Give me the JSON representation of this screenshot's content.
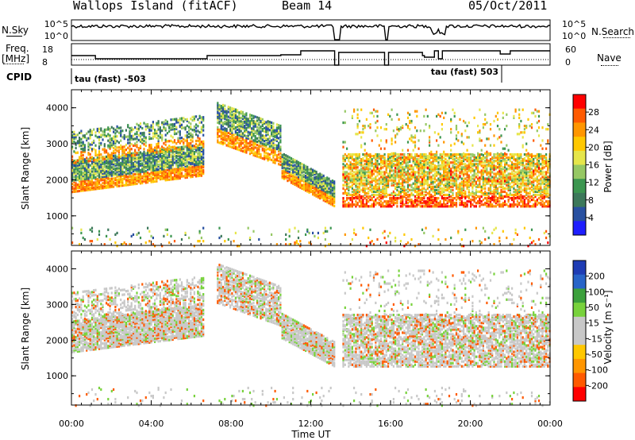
{
  "header": {
    "station": "Wallops Island (fitACF)",
    "beam": "Beam 14",
    "date": "05/Oct/2011"
  },
  "top_panels": {
    "nsky_label": "N.Sky",
    "nsky_ticks": [
      "10^5",
      "10^0"
    ],
    "nsearch_label": "N.Search",
    "nsearch_ticks": [
      "10^5",
      "10^0"
    ],
    "freq_label": "Freq.",
    "freq_unit": "[MHz]",
    "freq_ticks": [
      "18",
      "8"
    ],
    "nave_label": "Nave",
    "nave_ticks": [
      "60",
      "0"
    ],
    "cpid_label": "CPID",
    "cpid_left": "tau (fast) -503",
    "cpid_right": "tau (fast) 503"
  },
  "chart_data": [
    {
      "type": "heatmap",
      "name": "power",
      "ylabel": "Slant Range [km]",
      "y_ticks": [
        "1000",
        "2000",
        "3000",
        "4000"
      ],
      "ylim": [
        180,
        4500
      ],
      "xlim": [
        0,
        24
      ],
      "colorbar_label": "Power [dB]",
      "colorbar_ticks": [
        "28",
        "24",
        "20",
        "16",
        "12",
        "8",
        "4"
      ],
      "colorbar_colors": [
        "#ff0000",
        "#ff5a00",
        "#ff9600",
        "#ffc800",
        "#e6e64b",
        "#96c864",
        "#3c9650",
        "#3c785a",
        "#2850a0",
        "#1e1eff"
      ],
      "bands": [
        {
          "t0": 0.0,
          "t1": 6.6,
          "lo": 1600,
          "hi": 2800,
          "level": 0.55
        },
        {
          "t0": 0.3,
          "t1": 6.4,
          "lo": 2600,
          "hi": 3700,
          "level": 0.2
        },
        {
          "t0": 7.3,
          "t1": 13.2,
          "lo": 1400,
          "hi": 4200,
          "level": 0.5
        },
        {
          "t0": 13.5,
          "t1": 24.0,
          "lo": 1300,
          "hi": 2800,
          "level": 0.8
        },
        {
          "t0": 14.0,
          "t1": 24.0,
          "lo": 200,
          "hi": 4000,
          "level": 0.35
        }
      ]
    },
    {
      "type": "heatmap",
      "name": "velocity",
      "ylabel": "Slant Range [km]",
      "y_ticks": [
        "1000",
        "2000",
        "3000",
        "4000"
      ],
      "ylim": [
        180,
        4500
      ],
      "xlim": [
        0,
        24
      ],
      "colorbar_label": "Velocity [m s⁻¹]",
      "colorbar_ticks": [
        "200",
        "100",
        "50",
        "15",
        "-15",
        "-50",
        "-100",
        "-200"
      ],
      "colorbar_colors": [
        "#1e3cb4",
        "#2864c8",
        "#3ca03c",
        "#78d23c",
        "#c8c8c8",
        "#c8c8c8",
        "#ffc800",
        "#ff9600",
        "#ff5a00",
        "#ff0000"
      ]
    }
  ],
  "x_axis": {
    "ticks": [
      "00:00",
      "04:00",
      "08:00",
      "12:00",
      "16:00",
      "20:00",
      "00:00"
    ],
    "label": "Time UT"
  }
}
